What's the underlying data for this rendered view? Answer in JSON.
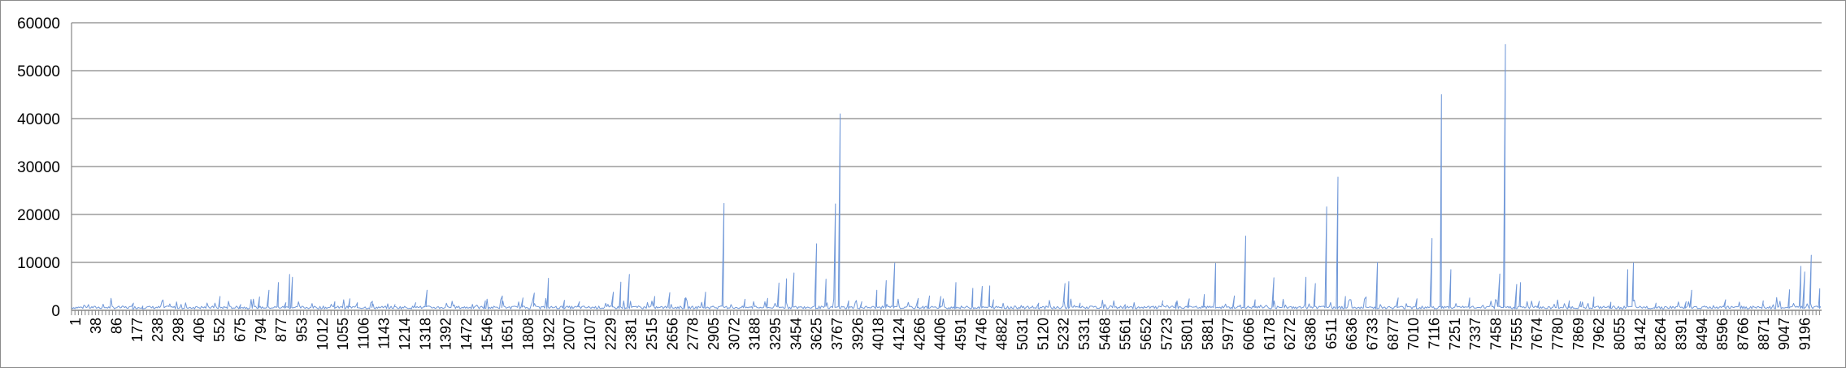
{
  "chart_data": {
    "type": "line",
    "title": "",
    "xlabel": "",
    "ylabel": "",
    "ylim": [
      0,
      60000
    ],
    "yticks": [
      0,
      10000,
      20000,
      30000,
      40000,
      50000,
      60000
    ],
    "grid": true,
    "legend": "none",
    "x_range": [
      1,
      9300
    ],
    "x_tick_labels": [
      "1",
      "38",
      "86",
      "177",
      "238",
      "298",
      "406",
      "552",
      "675",
      "794",
      "877",
      "953",
      "1012",
      "1055",
      "1106",
      "1143",
      "1214",
      "1318",
      "1392",
      "1472",
      "1546",
      "1651",
      "1808",
      "1922",
      "2007",
      "2107",
      "2229",
      "2381",
      "2515",
      "2656",
      "2778",
      "2905",
      "3072",
      "3188",
      "3295",
      "3454",
      "3625",
      "3767",
      "3926",
      "4018",
      "4124",
      "4266",
      "4406",
      "4591",
      "4746",
      "4882",
      "5031",
      "5120",
      "5232",
      "5331",
      "5468",
      "5561",
      "5652",
      "5723",
      "5801",
      "5881",
      "5977",
      "6066",
      "6178",
      "6272",
      "6386",
      "6511",
      "6636",
      "6733",
      "6877",
      "7010",
      "7116",
      "7251",
      "7337",
      "7458",
      "7555",
      "7674",
      "7780",
      "7869",
      "7962",
      "8055",
      "8142",
      "8264",
      "8391",
      "8494",
      "8596",
      "8766",
      "8871",
      "9047",
      "9196"
    ],
    "series_color": "#6f97d8",
    "axis_color": "#868686",
    "grid_color": "#868686",
    "baseline": 300,
    "noise": 600,
    "series": [
      {
        "values": [
          [
            330,
            1500
          ],
          [
            380,
            900
          ],
          [
            520,
            800
          ],
          [
            790,
            2900
          ],
          [
            900,
            1200
          ],
          [
            1000,
            2800
          ],
          [
            1050,
            4200
          ],
          [
            1100,
            5800
          ],
          [
            1140,
            1600
          ],
          [
            1160,
            7500
          ],
          [
            1175,
            6900
          ],
          [
            1400,
            1800
          ],
          [
            1480,
            2400
          ],
          [
            1520,
            1600
          ],
          [
            1600,
            1900
          ],
          [
            1720,
            1200
          ],
          [
            1830,
            1600
          ],
          [
            1890,
            4200
          ],
          [
            2200,
            2000
          ],
          [
            2290,
            3000
          ],
          [
            2400,
            2600
          ],
          [
            2460,
            3600
          ],
          [
            2535,
            6700
          ],
          [
            2620,
            2100
          ],
          [
            2700,
            1800
          ],
          [
            2880,
            3800
          ],
          [
            2920,
            5900
          ],
          [
            2965,
            7500
          ],
          [
            3100,
            2900
          ],
          [
            3180,
            3700
          ],
          [
            3260,
            2500
          ],
          [
            3370,
            3800
          ],
          [
            3468,
            22300
          ],
          [
            3580,
            2300
          ],
          [
            3700,
            2500
          ],
          [
            3760,
            5700
          ],
          [
            3800,
            6600
          ],
          [
            3840,
            7800
          ],
          [
            3960,
            13900
          ],
          [
            4010,
            6500
          ],
          [
            4060,
            22200
          ],
          [
            4085,
            41000
          ],
          [
            4130,
            2000
          ],
          [
            4200,
            1800
          ],
          [
            4280,
            4200
          ],
          [
            4330,
            6200
          ],
          [
            4375,
            9900
          ],
          [
            4500,
            2500
          ],
          [
            4560,
            3000
          ],
          [
            4620,
            2900
          ],
          [
            4700,
            5800
          ],
          [
            4790,
            4600
          ],
          [
            4840,
            5000
          ],
          [
            4880,
            5100
          ],
          [
            4900,
            2200
          ],
          [
            5140,
            1500
          ],
          [
            5280,
            5600
          ],
          [
            5300,
            6000
          ],
          [
            5360,
            1500
          ],
          [
            5600,
            1200
          ],
          [
            5800,
            2000
          ],
          [
            5870,
            1700
          ],
          [
            5940,
            2400
          ],
          [
            6020,
            3300
          ],
          [
            6080,
            9800
          ],
          [
            6180,
            3000
          ],
          [
            6240,
            15500
          ],
          [
            6290,
            2200
          ],
          [
            6390,
            6800
          ],
          [
            6560,
            6900
          ],
          [
            6610,
            5600
          ],
          [
            6670,
            21600
          ],
          [
            6730,
            27800
          ],
          [
            6770,
            2900
          ],
          [
            6880,
            2800
          ],
          [
            6940,
            10000
          ],
          [
            7050,
            2600
          ],
          [
            7150,
            2400
          ],
          [
            7230,
            15000
          ],
          [
            7280,
            45000
          ],
          [
            7330,
            8500
          ],
          [
            7430,
            2600
          ],
          [
            7590,
            7600
          ],
          [
            7620,
            55500
          ],
          [
            7680,
            5400
          ],
          [
            7700,
            5800
          ],
          [
            7800,
            1900
          ],
          [
            7960,
            2000
          ],
          [
            8020,
            1800
          ],
          [
            8090,
            2800
          ],
          [
            8180,
            1700
          ],
          [
            8270,
            8500
          ],
          [
            8300,
            9900
          ],
          [
            8420,
            1500
          ],
          [
            8580,
            1800
          ],
          [
            8610,
            4200
          ],
          [
            8790,
            2200
          ],
          [
            8990,
            2000
          ],
          [
            9130,
            4300
          ],
          [
            9190,
            9200
          ],
          [
            9210,
            8000
          ],
          [
            9245,
            11500
          ],
          [
            9290,
            4500
          ]
        ]
      }
    ]
  }
}
